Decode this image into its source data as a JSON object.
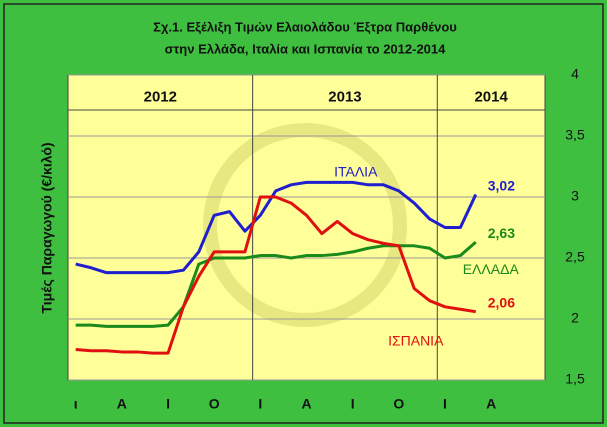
{
  "chart_data": {
    "type": "line",
    "title": [
      "Σχ.1. Εξέλιξη Τιμών  Ελαιολάδου Έξτρα Παρθένου",
      "στην Ελλάδα,  Ιταλία και Ισπανία  το 2012-2014"
    ],
    "y_label": "Τιμές Παραγωγού (€/κιλό)",
    "year_labels": [
      "2012",
      "2013",
      "2014"
    ],
    "categories": [
      "ι",
      null,
      null,
      "Α",
      null,
      null,
      "Ι",
      null,
      null,
      "Ο",
      null,
      null,
      "Ι",
      null,
      null,
      "Α",
      null,
      null,
      "Ι",
      null,
      null,
      "Ο",
      null,
      null,
      "Ι",
      null,
      null,
      "Α",
      null,
      null,
      null
    ],
    "series": [
      {
        "name": "ΙΤΑΛΙΑ",
        "color": "#1f1fd0",
        "values": [
          2.45,
          2.42,
          2.38,
          2.38,
          2.38,
          2.38,
          2.38,
          2.4,
          2.55,
          2.85,
          2.88,
          2.72,
          2.85,
          3.05,
          3.1,
          3.12,
          3.12,
          3.12,
          3.12,
          3.1,
          3.1,
          3.05,
          2.95,
          2.82,
          2.75,
          2.75,
          3.02,
          null,
          null,
          null,
          null
        ],
        "value_labels": [
          null,
          null,
          null,
          null,
          null,
          null,
          null,
          null,
          null,
          null,
          null,
          null,
          null,
          null,
          null,
          null,
          null,
          null,
          null,
          null,
          null,
          null,
          null,
          null,
          null,
          null,
          "3,02",
          null,
          null,
          null,
          null
        ]
      },
      {
        "name": "ΕΛΛΑΔΑ",
        "color": "#1a8a1a",
        "values": [
          1.95,
          1.95,
          1.94,
          1.94,
          1.94,
          1.94,
          1.95,
          2.1,
          2.45,
          2.5,
          2.5,
          2.5,
          2.52,
          2.52,
          2.5,
          2.52,
          2.52,
          2.53,
          2.55,
          2.58,
          2.6,
          2.6,
          2.6,
          2.58,
          2.5,
          2.52,
          2.63,
          null,
          null,
          null,
          null
        ],
        "value_labels": [
          null,
          null,
          null,
          null,
          null,
          null,
          null,
          null,
          null,
          null,
          null,
          null,
          null,
          null,
          null,
          null,
          null,
          null,
          null,
          null,
          null,
          null,
          null,
          null,
          null,
          null,
          "2,63",
          null,
          null,
          null,
          null
        ]
      },
      {
        "name": "ΙΣΠΑΝΙΑ",
        "color": "#e01010",
        "values": [
          1.75,
          1.74,
          1.74,
          1.73,
          1.73,
          1.72,
          1.72,
          2.1,
          2.35,
          2.55,
          2.55,
          2.55,
          3.0,
          3.0,
          2.95,
          2.85,
          2.7,
          2.8,
          2.7,
          2.65,
          2.62,
          2.6,
          2.25,
          2.15,
          2.1,
          2.08,
          2.06,
          null,
          null,
          null,
          null
        ],
        "value_labels": [
          null,
          null,
          null,
          null,
          null,
          null,
          null,
          null,
          null,
          null,
          null,
          null,
          null,
          null,
          null,
          null,
          null,
          null,
          null,
          null,
          null,
          null,
          null,
          null,
          null,
          null,
          "2,06",
          null,
          null,
          null,
          null
        ]
      }
    ],
    "ylim": [
      1.5,
      4
    ],
    "yticks": [
      {
        "value": 1.5,
        "label": "1,5"
      },
      2,
      {
        "value": 2.5,
        "label": "2,5"
      },
      3,
      {
        "value": 3.5,
        "label": "3,5"
      },
      4
    ],
    "y_axis_side": "right",
    "grid": true
  }
}
